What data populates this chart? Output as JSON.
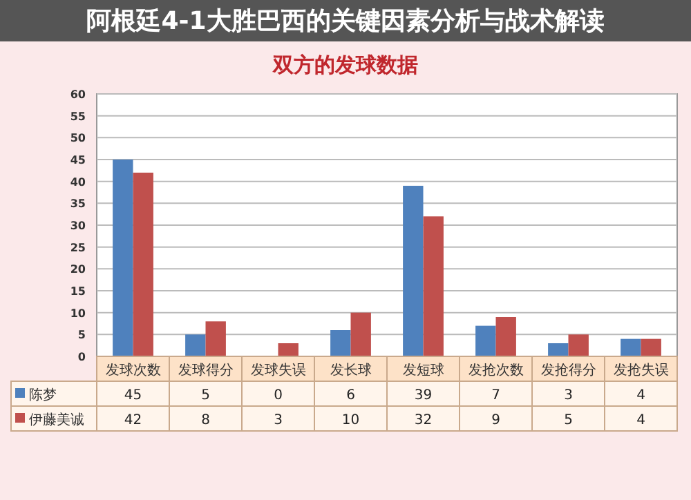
{
  "chart_data": {
    "type": "bar",
    "title": "双方的发球数据",
    "annotations": [
      "阿根廷4-1大胜巴西的关键因素分析与战术解读"
    ],
    "categories": [
      "发球次数",
      "发球得分",
      "发球失误",
      "发长球",
      "发短球",
      "发抢次数",
      "发抢得分",
      "发抢失误"
    ],
    "series": [
      {
        "name": "陈梦",
        "color": "#4f81bd",
        "values": [
          45,
          5,
          0,
          6,
          39,
          7,
          3,
          4
        ]
      },
      {
        "name": "伊藤美诚",
        "color": "#c0504d",
        "values": [
          42,
          8,
          3,
          10,
          32,
          9,
          5,
          4
        ]
      }
    ],
    "ylim": [
      0,
      60
    ],
    "yticks": [
      0,
      5,
      10,
      15,
      20,
      25,
      30,
      35,
      40,
      45,
      50,
      55,
      60
    ],
    "grid": "y",
    "legend": "bottom",
    "data_labels": true
  }
}
